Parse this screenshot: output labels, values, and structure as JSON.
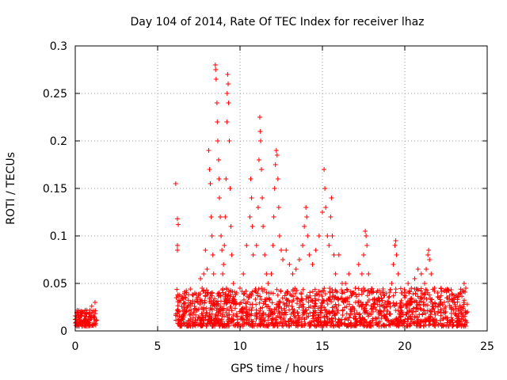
{
  "chart_data": {
    "type": "scatter",
    "title": "Day 104 of 2014, Rate Of TEC Index for receiver lhaz",
    "xlabel": "GPS time / hours",
    "ylabel": "ROTI / TECUs",
    "xlim": [
      0,
      25
    ],
    "ylim": [
      0,
      0.3
    ],
    "x_ticks": [
      0,
      5,
      10,
      15,
      20,
      25
    ],
    "x_tick_labels": [
      "0",
      "5",
      "10",
      "15",
      "20",
      "25"
    ],
    "y_ticks": [
      0,
      0.05,
      0.1,
      0.15,
      0.2,
      0.25,
      0.3
    ],
    "y_tick_labels": [
      "0",
      "0.05",
      "0.1",
      "0.15",
      "0.2",
      "0.25",
      "0.3"
    ],
    "grid": true,
    "legend": "none",
    "marker": "plus",
    "series_color": "#ff0000",
    "series": [
      {
        "name": "",
        "points": [
          [
            0.0,
            0.012
          ],
          [
            0.1,
            0.009
          ],
          [
            0.2,
            0.014
          ],
          [
            0.3,
            0.011
          ],
          [
            0.4,
            0.016
          ],
          [
            0.5,
            0.01
          ],
          [
            0.6,
            0.013
          ],
          [
            0.7,
            0.018
          ],
          [
            0.8,
            0.012
          ],
          [
            0.9,
            0.022
          ],
          [
            1.0,
            0.026
          ],
          [
            1.1,
            0.015
          ],
          [
            1.2,
            0.03
          ],
          [
            1.3,
            0.011
          ],
          [
            6.1,
            0.155
          ],
          [
            6.2,
            0.118
          ],
          [
            6.25,
            0.112
          ],
          [
            6.2,
            0.09
          ],
          [
            6.2,
            0.085
          ],
          [
            6.3,
            0.02
          ],
          [
            6.5,
            0.015
          ],
          [
            6.8,
            0.025
          ],
          [
            7.0,
            0.03
          ],
          [
            7.2,
            0.02
          ],
          [
            7.4,
            0.035
          ],
          [
            7.6,
            0.055
          ],
          [
            7.7,
            0.045
          ],
          [
            7.8,
            0.06
          ],
          [
            7.9,
            0.085
          ],
          [
            8.0,
            0.065
          ],
          [
            8.1,
            0.19
          ],
          [
            8.15,
            0.17
          ],
          [
            8.2,
            0.155
          ],
          [
            8.25,
            0.12
          ],
          [
            8.3,
            0.1
          ],
          [
            8.35,
            0.08
          ],
          [
            8.4,
            0.06
          ],
          [
            8.5,
            0.28
          ],
          [
            8.52,
            0.275
          ],
          [
            8.55,
            0.265
          ],
          [
            8.6,
            0.24
          ],
          [
            8.62,
            0.22
          ],
          [
            8.65,
            0.2
          ],
          [
            8.7,
            0.18
          ],
          [
            8.72,
            0.16
          ],
          [
            8.75,
            0.14
          ],
          [
            8.8,
            0.12
          ],
          [
            8.85,
            0.1
          ],
          [
            8.9,
            0.085
          ],
          [
            8.95,
            0.06
          ],
          [
            9.0,
            0.07
          ],
          [
            9.05,
            0.09
          ],
          [
            9.1,
            0.12
          ],
          [
            9.15,
            0.16
          ],
          [
            9.2,
            0.22
          ],
          [
            9.22,
            0.25
          ],
          [
            9.25,
            0.27
          ],
          [
            9.28,
            0.26
          ],
          [
            9.3,
            0.24
          ],
          [
            9.35,
            0.2
          ],
          [
            9.4,
            0.15
          ],
          [
            9.45,
            0.11
          ],
          [
            9.5,
            0.08
          ],
          [
            9.6,
            0.05
          ],
          [
            9.8,
            0.04
          ],
          [
            10.0,
            0.045
          ],
          [
            10.2,
            0.06
          ],
          [
            10.4,
            0.09
          ],
          [
            10.6,
            0.12
          ],
          [
            10.65,
            0.16
          ],
          [
            10.7,
            0.14
          ],
          [
            10.75,
            0.11
          ],
          [
            10.8,
            0.08
          ],
          [
            11.0,
            0.09
          ],
          [
            11.1,
            0.13
          ],
          [
            11.15,
            0.18
          ],
          [
            11.2,
            0.225
          ],
          [
            11.22,
            0.21
          ],
          [
            11.25,
            0.2
          ],
          [
            11.3,
            0.17
          ],
          [
            11.35,
            0.14
          ],
          [
            11.4,
            0.11
          ],
          [
            11.5,
            0.08
          ],
          [
            11.6,
            0.06
          ],
          [
            11.7,
            0.05
          ],
          [
            11.9,
            0.06
          ],
          [
            12.0,
            0.09
          ],
          [
            12.05,
            0.12
          ],
          [
            12.1,
            0.15
          ],
          [
            12.15,
            0.175
          ],
          [
            12.2,
            0.19
          ],
          [
            12.25,
            0.185
          ],
          [
            12.3,
            0.16
          ],
          [
            12.35,
            0.13
          ],
          [
            12.4,
            0.1
          ],
          [
            12.5,
            0.085
          ],
          [
            12.6,
            0.075
          ],
          [
            12.8,
            0.085
          ],
          [
            13.0,
            0.07
          ],
          [
            13.2,
            0.06
          ],
          [
            13.4,
            0.065
          ],
          [
            13.6,
            0.075
          ],
          [
            13.8,
            0.09
          ],
          [
            13.9,
            0.11
          ],
          [
            14.0,
            0.13
          ],
          [
            14.05,
            0.12
          ],
          [
            14.1,
            0.1
          ],
          [
            14.2,
            0.08
          ],
          [
            14.4,
            0.07
          ],
          [
            14.6,
            0.085
          ],
          [
            14.8,
            0.1
          ],
          [
            15.0,
            0.125
          ],
          [
            15.1,
            0.17
          ],
          [
            15.15,
            0.15
          ],
          [
            15.2,
            0.13
          ],
          [
            15.3,
            0.1
          ],
          [
            15.4,
            0.09
          ],
          [
            15.5,
            0.12
          ],
          [
            15.55,
            0.14
          ],
          [
            15.6,
            0.1
          ],
          [
            15.7,
            0.08
          ],
          [
            15.8,
            0.06
          ],
          [
            16.0,
            0.08
          ],
          [
            16.2,
            0.05
          ],
          [
            16.4,
            0.05
          ],
          [
            16.6,
            0.06
          ],
          [
            16.8,
            0.04
          ],
          [
            17.0,
            0.045
          ],
          [
            17.2,
            0.07
          ],
          [
            17.4,
            0.06
          ],
          [
            17.5,
            0.08
          ],
          [
            17.6,
            0.105
          ],
          [
            17.65,
            0.1
          ],
          [
            17.7,
            0.09
          ],
          [
            17.8,
            0.06
          ],
          [
            18.0,
            0.04
          ],
          [
            18.2,
            0.03
          ],
          [
            18.5,
            0.02
          ],
          [
            18.8,
            0.025
          ],
          [
            19.0,
            0.03
          ],
          [
            19.2,
            0.05
          ],
          [
            19.3,
            0.07
          ],
          [
            19.4,
            0.09
          ],
          [
            19.45,
            0.095
          ],
          [
            19.5,
            0.08
          ],
          [
            19.6,
            0.06
          ],
          [
            19.8,
            0.04
          ],
          [
            20.0,
            0.035
          ],
          [
            20.2,
            0.05
          ],
          [
            20.4,
            0.045
          ],
          [
            20.6,
            0.055
          ],
          [
            20.8,
            0.065
          ],
          [
            21.0,
            0.06
          ],
          [
            21.2,
            0.05
          ],
          [
            21.3,
            0.065
          ],
          [
            21.4,
            0.08
          ],
          [
            21.45,
            0.085
          ],
          [
            21.5,
            0.075
          ],
          [
            21.6,
            0.06
          ],
          [
            21.8,
            0.045
          ],
          [
            22.0,
            0.04
          ],
          [
            22.2,
            0.045
          ],
          [
            22.4,
            0.03
          ],
          [
            22.6,
            0.035
          ],
          [
            22.8,
            0.025
          ],
          [
            23.0,
            0.03
          ],
          [
            23.2,
            0.035
          ],
          [
            23.4,
            0.04
          ],
          [
            23.6,
            0.05
          ],
          [
            23.7,
            0.045
          ],
          [
            23.8,
            0.02
          ]
        ]
      }
    ],
    "bands": [
      {
        "x_start": 0.0,
        "x_end": 1.3,
        "y_low": 0.005,
        "y_high": 0.022
      },
      {
        "x_start": 6.1,
        "x_end": 23.8,
        "y_low": 0.005,
        "y_high": 0.045
      }
    ]
  }
}
